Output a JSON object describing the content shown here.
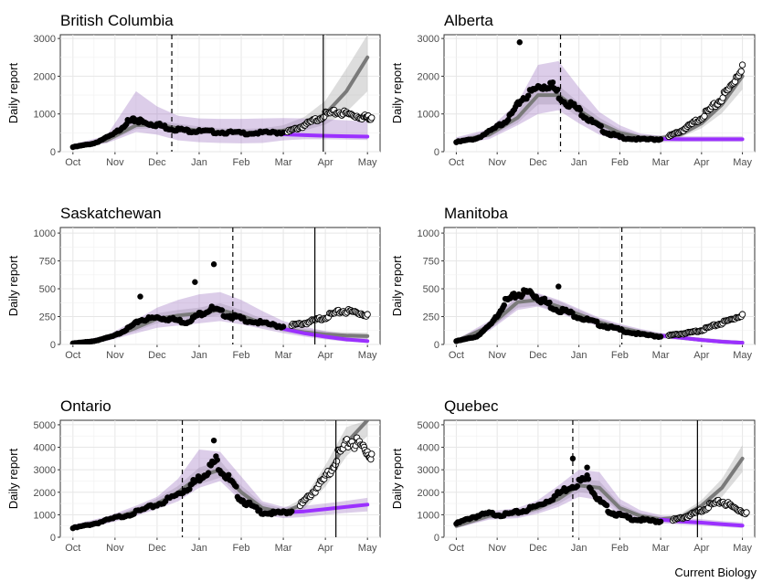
{
  "credit": "Current Biology",
  "chart_data": [
    {
      "type": "scatter",
      "title": "British Columbia",
      "ylabel": "Daily report",
      "xlabel": "",
      "x_ticks": [
        "Oct",
        "Nov",
        "Dec",
        "Jan",
        "Feb",
        "Mar",
        "Apr",
        "May"
      ],
      "y_ticks": [
        "0",
        "1000",
        "2000",
        "3000"
      ],
      "ylim": [
        0,
        3100
      ],
      "xlim": [
        -0.3,
        7.3
      ],
      "vline_dashed": 2.35,
      "vline_solid": 5.95,
      "obs_x": [
        0.0,
        0.5,
        1.0,
        1.3,
        1.5,
        1.7,
        2.0,
        2.3,
        2.7,
        3.0,
        3.5,
        4.0,
        4.5,
        5.0
      ],
      "obs_y": [
        120,
        220,
        480,
        780,
        850,
        760,
        720,
        620,
        560,
        540,
        520,
        490,
        500,
        510
      ],
      "new_x": [
        5.1,
        5.4,
        5.7,
        6.0,
        6.3,
        6.6,
        6.9,
        7.1
      ],
      "new_y": [
        520,
        650,
        800,
        980,
        1050,
        980,
        920,
        900
      ],
      "fit_x": [
        0.0,
        0.8,
        1.5,
        2.0,
        2.5,
        3.0,
        3.5,
        4.0,
        4.5,
        5.0,
        5.5,
        6.0,
        6.5,
        7.0
      ],
      "fit_y": [
        130,
        300,
        700,
        720,
        620,
        560,
        520,
        500,
        510,
        560,
        720,
        1000,
        1600,
        2500
      ],
      "fit_lo": [
        100,
        240,
        600,
        620,
        520,
        470,
        440,
        420,
        420,
        450,
        560,
        720,
        1050,
        1600
      ],
      "fit_hi": [
        170,
        380,
        820,
        830,
        740,
        670,
        620,
        600,
        620,
        700,
        920,
        1350,
        2200,
        3100
      ],
      "base_x": [
        0.0,
        0.8,
        1.5,
        2.0,
        2.5,
        3.0,
        3.5,
        4.0,
        4.5,
        5.0,
        5.5,
        6.0,
        6.5,
        7.0
      ],
      "base_y": [
        130,
        300,
        700,
        700,
        600,
        540,
        500,
        480,
        470,
        460,
        440,
        420,
        410,
        400
      ],
      "base_lo": [
        90,
        220,
        520,
        450,
        300,
        250,
        230,
        220,
        230,
        300,
        330,
        330,
        320,
        310
      ],
      "base_hi": [
        200,
        420,
        1600,
        1200,
        950,
        880,
        870,
        870,
        880,
        890,
        880,
        860,
        830,
        800
      ]
    },
    {
      "type": "scatter",
      "title": "Alberta",
      "ylabel": "Daily report",
      "xlabel": "",
      "x_ticks": [
        "Oct",
        "Nov",
        "Dec",
        "Jan",
        "Feb",
        "Mar",
        "Apr",
        "May"
      ],
      "y_ticks": [
        "0",
        "1000",
        "2000",
        "3000"
      ],
      "ylim": [
        0,
        3100
      ],
      "xlim": [
        -0.3,
        7.3
      ],
      "vline_dashed": 2.55,
      "vline_solid": null,
      "obs_x": [
        0.0,
        0.5,
        1.0,
        1.3,
        1.6,
        2.0,
        2.3,
        2.6,
        3.0,
        3.3,
        3.7,
        4.0,
        4.5,
        5.0
      ],
      "obs_y": [
        250,
        350,
        650,
        900,
        1400,
        1700,
        1800,
        1400,
        1100,
        800,
        500,
        380,
        320,
        330
      ],
      "outlier_x": [
        1.55
      ],
      "outlier_y": [
        2900
      ],
      "new_x": [
        5.2,
        5.5,
        5.8,
        6.1,
        6.4,
        6.7,
        7.0
      ],
      "new_y": [
        400,
        550,
        750,
        1000,
        1300,
        1700,
        2300
      ],
      "fit_x": [
        0.0,
        0.8,
        1.5,
        2.0,
        2.5,
        3.0,
        3.5,
        4.0,
        4.5,
        5.0,
        5.5,
        6.0,
        6.5,
        7.0
      ],
      "fit_y": [
        280,
        450,
        900,
        1500,
        1500,
        1100,
        750,
        500,
        380,
        360,
        460,
        750,
        1250,
        2000
      ],
      "fit_lo": [
        220,
        380,
        760,
        1250,
        1250,
        920,
        620,
        410,
        310,
        300,
        380,
        620,
        1020,
        1650
      ],
      "fit_hi": [
        350,
        540,
        1060,
        1780,
        1760,
        1300,
        900,
        600,
        450,
        430,
        560,
        900,
        1500,
        2400
      ],
      "base_x": [
        0.0,
        0.8,
        1.5,
        2.0,
        2.5,
        3.0,
        3.5,
        4.0,
        4.5,
        5.0,
        5.5,
        6.0,
        6.5,
        7.0
      ],
      "base_y": [
        280,
        450,
        900,
        1450,
        1550,
        1150,
        750,
        500,
        380,
        340,
        330,
        330,
        330,
        330
      ],
      "base_lo": [
        200,
        330,
        700,
        1000,
        1100,
        750,
        450,
        300,
        260,
        250,
        260,
        260,
        260,
        260
      ],
      "base_hi": [
        380,
        600,
        1300,
        2300,
        2400,
        1700,
        1050,
        700,
        480,
        420,
        410,
        410,
        410,
        410
      ]
    },
    {
      "type": "scatter",
      "title": "Saskatchewan",
      "ylabel": "Daily report",
      "xlabel": "",
      "x_ticks": [
        "Oct",
        "Nov",
        "Dec",
        "Jan",
        "Feb",
        "Mar",
        "Apr",
        "May"
      ],
      "y_ticks": [
        "0",
        "250",
        "500",
        "750",
        "1000"
      ],
      "ylim": [
        0,
        1050
      ],
      "xlim": [
        -0.3,
        7.3
      ],
      "vline_dashed": 3.8,
      "vline_solid": 5.75,
      "obs_x": [
        0.0,
        0.5,
        1.0,
        1.3,
        1.6,
        2.0,
        2.3,
        2.7,
        3.0,
        3.3,
        3.7,
        4.0,
        4.5,
        5.0
      ],
      "obs_y": [
        10,
        30,
        80,
        140,
        220,
        240,
        230,
        200,
        270,
        320,
        260,
        230,
        190,
        160
      ],
      "outlier_x": [
        1.6,
        2.9,
        3.35
      ],
      "outlier_y": [
        430,
        560,
        720
      ],
      "new_x": [
        5.2,
        5.5,
        5.8,
        6.1,
        6.4,
        6.7,
        7.0
      ],
      "new_y": [
        170,
        190,
        220,
        260,
        300,
        290,
        270
      ],
      "fit_x": [
        0.0,
        0.8,
        1.5,
        2.0,
        2.5,
        3.0,
        3.5,
        4.0,
        4.5,
        5.0,
        5.5,
        6.0,
        6.5,
        7.0
      ],
      "fit_y": [
        10,
        50,
        150,
        230,
        260,
        280,
        310,
        260,
        190,
        140,
        110,
        90,
        80,
        75
      ],
      "fit_lo": [
        5,
        35,
        120,
        190,
        220,
        240,
        260,
        220,
        160,
        115,
        85,
        65,
        55,
        50
      ],
      "fit_hi": [
        18,
        70,
        190,
        280,
        310,
        330,
        370,
        310,
        230,
        170,
        140,
        120,
        110,
        105
      ],
      "base_x": [
        0.0,
        0.8,
        1.5,
        2.0,
        2.5,
        3.0,
        3.5,
        4.0,
        4.5,
        5.0,
        5.5,
        6.0,
        6.5,
        7.0
      ],
      "base_y": [
        10,
        50,
        150,
        220,
        250,
        290,
        320,
        270,
        200,
        140,
        100,
        70,
        45,
        30
      ],
      "base_lo": [
        5,
        30,
        100,
        150,
        170,
        190,
        210,
        180,
        140,
        100,
        70,
        45,
        25,
        15
      ],
      "base_hi": [
        20,
        80,
        220,
        330,
        400,
        450,
        470,
        400,
        300,
        210,
        160,
        120,
        90,
        70
      ]
    },
    {
      "type": "scatter",
      "title": "Manitoba",
      "ylabel": "Daily report",
      "xlabel": "",
      "x_ticks": [
        "Oct",
        "Nov",
        "Dec",
        "Jan",
        "Feb",
        "Mar",
        "Apr",
        "May"
      ],
      "y_ticks": [
        "0",
        "250",
        "500",
        "750",
        "1000"
      ],
      "ylim": [
        0,
        1050
      ],
      "xlim": [
        -0.3,
        7.3
      ],
      "vline_dashed": 4.05,
      "vline_solid": null,
      "obs_x": [
        0.0,
        0.5,
        0.9,
        1.2,
        1.5,
        1.8,
        2.1,
        2.4,
        2.8,
        3.2,
        3.6,
        4.0,
        4.5,
        5.0
      ],
      "obs_y": [
        30,
        70,
        200,
        380,
        450,
        470,
        400,
        330,
        280,
        220,
        170,
        130,
        90,
        70
      ],
      "outlier_x": [
        2.5
      ],
      "outlier_y": [
        520
      ],
      "new_x": [
        5.2,
        5.5,
        5.8,
        6.1,
        6.4,
        6.7,
        7.0
      ],
      "new_y": [
        80,
        95,
        110,
        140,
        180,
        220,
        270
      ],
      "fit_x": [
        0.0,
        0.8,
        1.5,
        2.0,
        2.5,
        3.0,
        3.5,
        4.0,
        4.5,
        5.0,
        5.5,
        6.0,
        6.5,
        7.0
      ],
      "fit_y": [
        30,
        160,
        380,
        400,
        340,
        270,
        200,
        150,
        110,
        80,
        60,
        40,
        25,
        15
      ],
      "fit_lo": [
        20,
        130,
        330,
        350,
        290,
        230,
        170,
        125,
        90,
        65,
        45,
        30,
        18,
        10
      ],
      "fit_hi": [
        42,
        190,
        430,
        450,
        390,
        310,
        230,
        175,
        130,
        100,
        80,
        55,
        38,
        25
      ],
      "base_x": [
        0.0,
        0.8,
        1.5,
        2.0,
        2.5,
        3.0,
        3.5,
        4.0,
        4.5,
        5.0,
        5.5,
        6.0,
        6.5,
        7.0
      ],
      "base_y": [
        30,
        160,
        370,
        400,
        340,
        270,
        200,
        150,
        110,
        80,
        60,
        40,
        25,
        15
      ],
      "base_lo": [
        20,
        120,
        310,
        340,
        280,
        220,
        160,
        110,
        80,
        55,
        40,
        25,
        15,
        8
      ],
      "base_hi": [
        45,
        210,
        440,
        460,
        400,
        320,
        240,
        185,
        140,
        105,
        80,
        60,
        45,
        30
      ]
    },
    {
      "type": "scatter",
      "title": "Ontario",
      "ylabel": "Daily report",
      "xlabel": "",
      "x_ticks": [
        "Oct",
        "Nov",
        "Dec",
        "Jan",
        "Feb",
        "Mar",
        "Apr",
        "May"
      ],
      "y_ticks": [
        "0",
        "1000",
        "2000",
        "3000",
        "4000",
        "5000"
      ],
      "ylim": [
        0,
        5200
      ],
      "xlim": [
        -0.3,
        7.3
      ],
      "vline_dashed": 2.6,
      "vline_solid": 6.25,
      "obs_x": [
        0.0,
        0.5,
        1.0,
        1.5,
        2.0,
        2.5,
        2.8,
        3.1,
        3.4,
        3.7,
        4.0,
        4.4,
        4.8,
        5.2
      ],
      "obs_y": [
        400,
        600,
        850,
        1100,
        1450,
        1900,
        2300,
        2800,
        3400,
        2600,
        1700,
        1150,
        1050,
        1150
      ],
      "outlier_x": [
        3.35
      ],
      "outlier_y": [
        4300
      ],
      "new_x": [
        5.4,
        5.7,
        6.0,
        6.3,
        6.6,
        6.9,
        7.1
      ],
      "new_y": [
        1400,
        2000,
        2600,
        3600,
        4300,
        4000,
        3700
      ],
      "fit_x": [
        0.0,
        0.8,
        1.5,
        2.0,
        2.5,
        3.0,
        3.5,
        4.0,
        4.5,
        5.0,
        5.5,
        6.0,
        6.5,
        7.0
      ],
      "fit_y": [
        450,
        750,
        1150,
        1500,
        2000,
        2700,
        3000,
        2000,
        1300,
        1100,
        1500,
        2700,
        4200,
        5200
      ],
      "fit_lo": [
        380,
        640,
        990,
        1300,
        1750,
        2350,
        2650,
        1750,
        1100,
        950,
        1250,
        2250,
        3600,
        4500
      ],
      "fit_hi": [
        530,
        870,
        1320,
        1720,
        2280,
        3100,
        3400,
        2300,
        1500,
        1280,
        1750,
        3200,
        4900,
        5200
      ],
      "base_x": [
        0.0,
        0.8,
        1.5,
        2.0,
        2.5,
        3.0,
        3.5,
        4.0,
        4.5,
        5.0,
        5.5,
        6.0,
        6.5,
        7.0
      ],
      "base_y": [
        450,
        750,
        1150,
        1500,
        2000,
        2800,
        3000,
        2100,
        1300,
        1100,
        1150,
        1250,
        1350,
        1450
      ],
      "base_lo": [
        350,
        600,
        950,
        1250,
        1600,
        2200,
        2500,
        1600,
        1000,
        850,
        900,
        1000,
        1080,
        1150
      ],
      "base_hi": [
        560,
        920,
        1400,
        1800,
        2600,
        3900,
        3800,
        2700,
        1600,
        1350,
        1400,
        1500,
        1620,
        1750
      ]
    },
    {
      "type": "scatter",
      "title": "Quebec",
      "ylabel": "Daily report",
      "xlabel": "",
      "x_ticks": [
        "Oct",
        "Nov",
        "Dec",
        "Jan",
        "Feb",
        "Mar",
        "Apr",
        "May"
      ],
      "y_ticks": [
        "0",
        "1000",
        "2000",
        "3000",
        "4000",
        "5000"
      ],
      "ylim": [
        0,
        5200
      ],
      "xlim": [
        -0.3,
        7.3
      ],
      "vline_dashed": 2.85,
      "vline_solid": 5.9,
      "obs_x": [
        0.0,
        0.4,
        0.8,
        1.2,
        1.6,
        2.0,
        2.4,
        2.8,
        3.2,
        3.5,
        3.8,
        4.2,
        4.6,
        5.0
      ],
      "obs_y": [
        600,
        900,
        1050,
        1000,
        1150,
        1400,
        1800,
        2300,
        2600,
        1600,
        1100,
        850,
        750,
        700
      ],
      "outlier_x": [
        2.85,
        3.2
      ],
      "outlier_y": [
        3500,
        3100
      ],
      "new_x": [
        5.3,
        5.6,
        5.9,
        6.2,
        6.5,
        6.8,
        7.1
      ],
      "new_y": [
        750,
        900,
        1100,
        1400,
        1600,
        1300,
        1100
      ],
      "fit_x": [
        0.0,
        0.8,
        1.5,
        2.0,
        2.5,
        3.0,
        3.5,
        4.0,
        4.5,
        5.0,
        5.5,
        6.0,
        6.5,
        7.0
      ],
      "fit_y": [
        500,
        950,
        1050,
        1300,
        1700,
        2300,
        2200,
        1300,
        950,
        800,
        900,
        1400,
        2200,
        3500
      ],
      "fit_lo": [
        420,
        820,
        920,
        1130,
        1480,
        2000,
        1900,
        1120,
        820,
        690,
        760,
        1150,
        1800,
        2900
      ],
      "fit_hi": [
        580,
        1080,
        1180,
        1480,
        1930,
        2600,
        2500,
        1480,
        1080,
        910,
        1050,
        1650,
        2600,
        4100
      ],
      "base_x": [
        0.0,
        0.8,
        1.5,
        2.0,
        2.5,
        3.0,
        3.5,
        4.0,
        4.5,
        5.0,
        5.5,
        6.0,
        6.5,
        7.0
      ],
      "base_y": [
        500,
        950,
        1050,
        1300,
        1700,
        2300,
        2200,
        1300,
        950,
        780,
        700,
        650,
        580,
        520
      ],
      "base_lo": [
        400,
        780,
        850,
        1050,
        1350,
        1800,
        1650,
        1000,
        750,
        620,
        560,
        520,
        460,
        400
      ],
      "base_hi": [
        620,
        1150,
        1300,
        1650,
        2300,
        3000,
        2900,
        1700,
        1200,
        980,
        880,
        800,
        720,
        660
      ]
    }
  ]
}
